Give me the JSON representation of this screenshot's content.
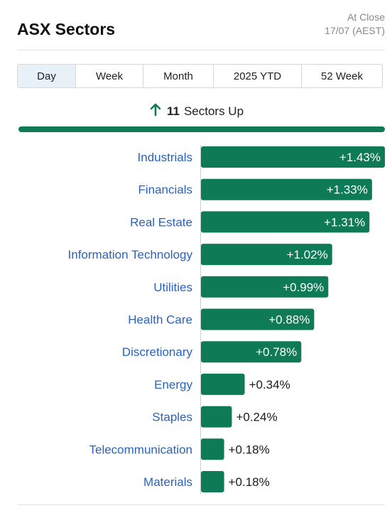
{
  "header": {
    "title": "ASX Sectors",
    "close_line1": "At Close",
    "close_line2": "17/07 (AEST)"
  },
  "tabs": [
    {
      "label": "Day",
      "active": true
    },
    {
      "label": "Week",
      "active": false
    },
    {
      "label": "Month",
      "active": false
    },
    {
      "label": "2025 YTD",
      "active": false
    },
    {
      "label": "52 Week",
      "active": false
    }
  ],
  "summary": {
    "count": "11",
    "text": "Sectors Up",
    "icon": "arrow-up-icon"
  },
  "colors": {
    "up": "#0f7a56",
    "label": "#2a62c2"
  },
  "chart_data": {
    "type": "bar",
    "orientation": "horizontal",
    "categories": [
      "Industrials",
      "Financials",
      "Real Estate",
      "Information Technology",
      "Utilities",
      "Health Care",
      "Discretionary",
      "Energy",
      "Staples",
      "Telecommunication",
      "Materials"
    ],
    "values": [
      1.43,
      1.33,
      1.31,
      1.02,
      0.99,
      0.88,
      0.78,
      0.34,
      0.24,
      0.18,
      0.18
    ],
    "labels": [
      "+1.43%",
      "+1.33%",
      "+1.31%",
      "+1.02%",
      "+0.99%",
      "+0.88%",
      "+0.78%",
      "+0.34%",
      "+0.24%",
      "+0.18%",
      "+0.18%"
    ],
    "xlim": [
      0,
      1.43
    ],
    "grid": false,
    "legend": "none"
  }
}
